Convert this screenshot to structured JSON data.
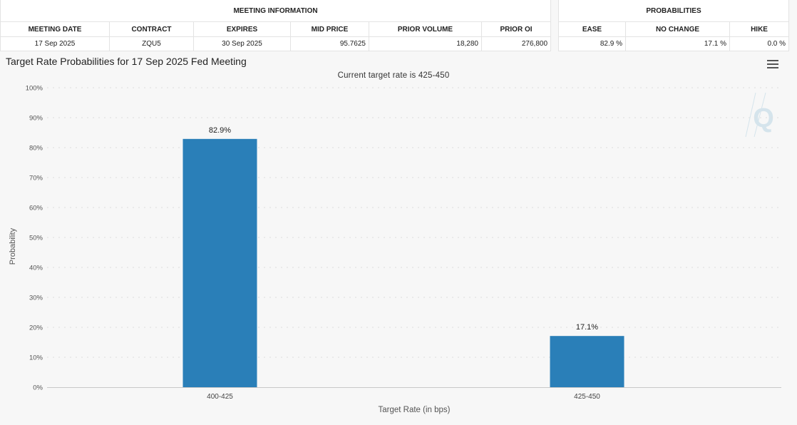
{
  "meeting_info": {
    "group_label": "MEETING INFORMATION",
    "columns": [
      "MEETING DATE",
      "CONTRACT",
      "EXPIRES",
      "MID PRICE",
      "PRIOR VOLUME",
      "PRIOR OI"
    ],
    "row": [
      "17 Sep 2025",
      "ZQU5",
      "30 Sep 2025",
      "95.7625",
      "18,280",
      "276,800"
    ]
  },
  "probabilities": {
    "group_label": "PROBABILITIES",
    "columns": [
      "EASE",
      "NO CHANGE",
      "HIKE"
    ],
    "row": [
      "82.9 %",
      "17.1 %",
      "0.0 %"
    ]
  },
  "chart_data": {
    "type": "bar",
    "title": "Target Rate Probabilities for 17 Sep 2025 Fed Meeting",
    "subtitle": "Current target rate is 425-450",
    "categories": [
      "400-425",
      "425-450"
    ],
    "values": [
      82.9,
      17.1
    ],
    "data_labels": [
      "82.9%",
      "17.1%"
    ],
    "xlabel": "Target Rate (in bps)",
    "ylabel": "Probability",
    "ylim": [
      0,
      100
    ],
    "yticks": [
      "0%",
      "10%",
      "20%",
      "30%",
      "40%",
      "50%",
      "60%",
      "70%",
      "80%",
      "90%",
      "100%"
    ],
    "grid": true,
    "bar_color": "#2a7fb8"
  },
  "icons": {
    "menu": "hamburger-menu-icon",
    "watermark": "q-logo-watermark"
  }
}
